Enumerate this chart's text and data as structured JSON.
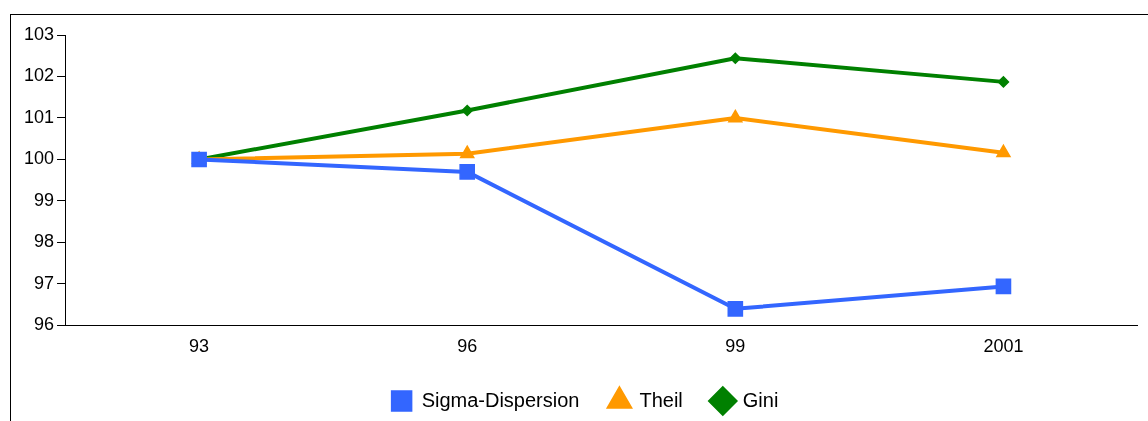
{
  "chart_data": {
    "type": "line",
    "categories": [
      "93",
      "96",
      "99",
      "2001"
    ],
    "series": [
      {
        "name": "Sigma-Dispersion",
        "color": "#3366ff",
        "marker": "square",
        "values": [
          100,
          99.7,
          96.4,
          96.94
        ]
      },
      {
        "name": "Theil",
        "color": "#ff9900",
        "marker": "triangle",
        "values": [
          100,
          100.14,
          101.0,
          100.16
        ]
      },
      {
        "name": "Gini",
        "color": "#008000",
        "marker": "diamond",
        "values": [
          100,
          101.18,
          102.44,
          101.87
        ]
      }
    ],
    "ylim": [
      96,
      103
    ],
    "yticks": [
      96,
      97,
      98,
      99,
      100,
      101,
      102,
      103
    ],
    "grid": false,
    "legend": "bottom",
    "line_style": "solid"
  }
}
